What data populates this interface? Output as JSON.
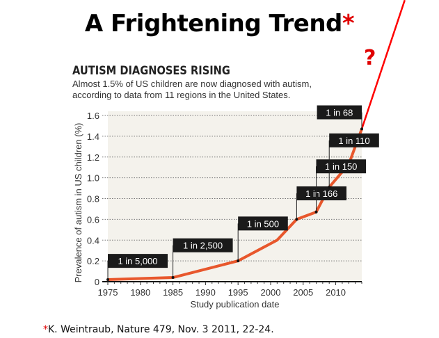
{
  "slide": {
    "title": "A Frightening Trend",
    "title_marker": "*",
    "question_mark": "?",
    "footnote_marker": "*",
    "footnote": "K. Weintraub, Nature 479, Nov. 3 2011, 22-24."
  },
  "colors": {
    "line": "#e8572c",
    "extrapolation": "#ff0000",
    "plot_bg": "#f4f2ec",
    "label_bg": "#1a1a1a",
    "accent": "#e00000"
  },
  "chart_data": {
    "type": "line",
    "title": "AUTISM DIAGNOSES RISING",
    "subtitle_lines": [
      "Almost 1.5% of US children are now diagnosed with autism,",
      "according to data from 11 regions in the United States."
    ],
    "xlabel": "Study publication date",
    "ylabel": "Prevalence of autism in US children (%)",
    "xlim": [
      1975,
      2014
    ],
    "ylim": [
      0,
      1.6
    ],
    "xticks": [
      1975,
      1980,
      1985,
      1990,
      1995,
      2000,
      2005,
      2010
    ],
    "yticks": [
      0,
      0.2,
      0.4,
      0.6,
      0.8,
      1.0,
      1.2,
      1.4,
      1.6
    ],
    "ytick_labels": [
      "0",
      "0.2",
      "0.4",
      "0.6",
      "0.8",
      "1.0",
      "1.2",
      "1.4",
      "1.6"
    ],
    "grid": "horizontal-dotted",
    "series": [
      {
        "name": "Prevalence",
        "x": [
          1975,
          1985,
          1995,
          2001,
          2004,
          2007,
          2009,
          2012,
          2014
        ],
        "y": [
          0.02,
          0.04,
          0.2,
          0.4,
          0.6,
          0.67,
          0.91,
          1.13,
          1.47
        ]
      }
    ],
    "annotations": [
      {
        "x": 1975,
        "y": 0.02,
        "text": "1 in 5,000",
        "label_y": 0.2
      },
      {
        "x": 1985,
        "y": 0.04,
        "text": "1 in 2,500",
        "label_y": 0.35
      },
      {
        "x": 1995,
        "y": 0.2,
        "text": "1 in 500",
        "label_y": 0.56
      },
      {
        "x": 2004,
        "y": 0.6,
        "text": "1 in 166",
        "label_y": 0.85
      },
      {
        "x": 2007,
        "y": 0.67,
        "text": "1 in 150",
        "label_y": 1.11
      },
      {
        "x": 2009,
        "y": 0.91,
        "text": "1 in 110",
        "label_y": 1.36
      },
      {
        "x": 2014,
        "y": 1.47,
        "text": "1 in 68",
        "label_y": 1.63
      }
    ],
    "extrapolation": {
      "from_x": 2014,
      "from_y": 1.47,
      "to_x": 2020.6,
      "to_y": 2.71,
      "label": "?"
    }
  }
}
